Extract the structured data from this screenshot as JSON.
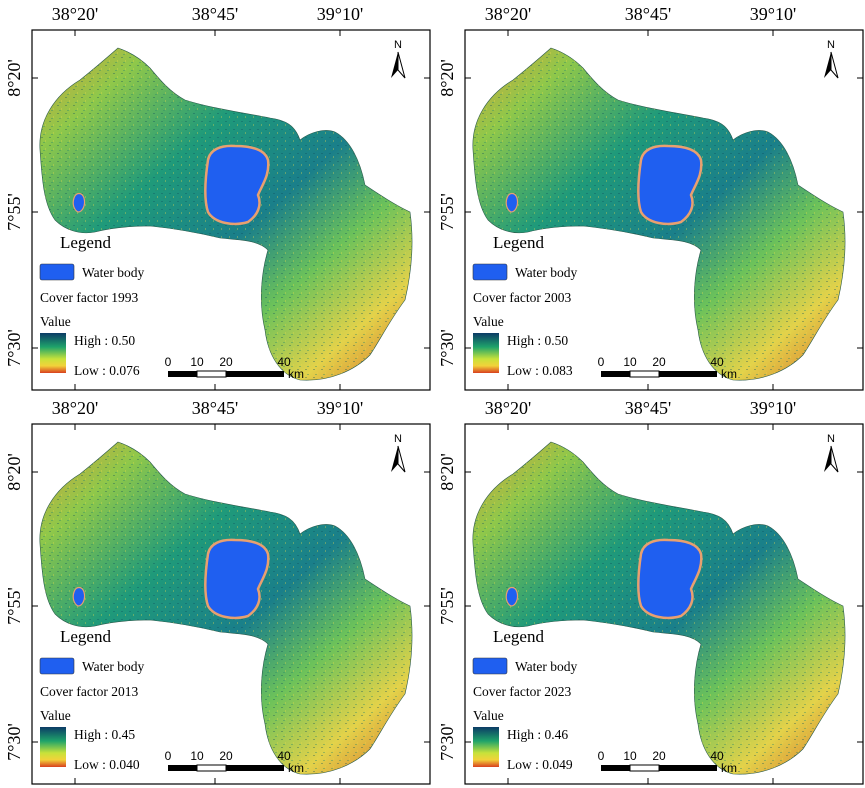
{
  "axes": {
    "top_lon": [
      "38°20'",
      "38°45'",
      "39°10'"
    ],
    "lat": [
      "8°20'",
      "7°55'",
      "7°30'"
    ]
  },
  "legend_common": {
    "title": "Legend",
    "water_label": "Water body",
    "value_label": "Value",
    "north": "N",
    "scale_ticks": [
      "0",
      "10",
      "20",
      "40"
    ],
    "scale_unit": "km"
  },
  "colors": {
    "water": "#1f5ff0",
    "high": "#0b3b66",
    "mid": "#1fb36a",
    "low_yellow": "#f2e23a",
    "low": "#d8401e"
  },
  "panels": [
    {
      "cover_label": "Cover factor 1993",
      "high": "High : 0.50",
      "low": "Low : 0.076",
      "high_value": 0.5,
      "low_value": 0.076
    },
    {
      "cover_label": "Cover factor 2003",
      "high": "High : 0.50",
      "low": "Low : 0.083",
      "high_value": 0.5,
      "low_value": 0.083
    },
    {
      "cover_label": "Cover factor 2013",
      "high": "High : 0.45",
      "low": "Low : 0.040",
      "high_value": 0.45,
      "low_value": 0.04
    },
    {
      "cover_label": "Cover factor 2023",
      "high": "High : 0.46",
      "low": "Low : 0.049",
      "high_value": 0.46,
      "low_value": 0.049
    }
  ]
}
